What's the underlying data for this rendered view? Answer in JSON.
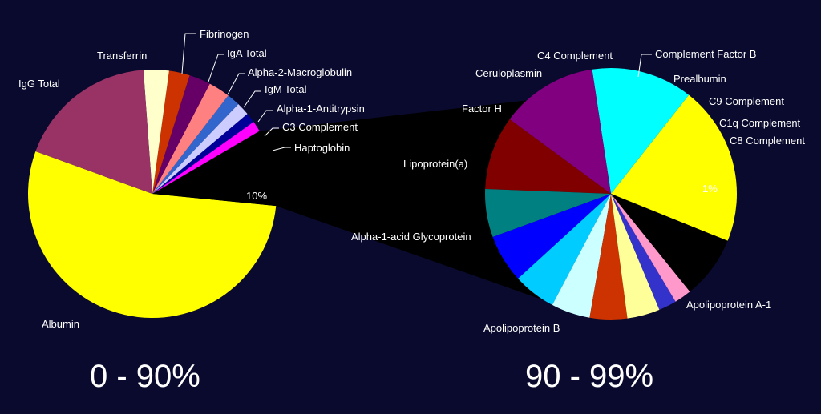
{
  "colors": {
    "background": "#0a0a2e",
    "text": "#ffffff",
    "connector": "#000000"
  },
  "chart_data": [
    {
      "type": "pie",
      "caption": "0 - 90%",
      "start_angle_deg": 160,
      "slices": [
        {
          "label": "Albumin",
          "value": 54,
          "color": "#ffff00"
        },
        {
          "label": "10%",
          "value": 10,
          "color": "#000000",
          "is_exploded_group": true
        },
        {
          "label": "Haptoglobin",
          "value": 1.4,
          "color": "#ff00ff"
        },
        {
          "label": "C3 Complement",
          "value": 1.3,
          "color": "#000099"
        },
        {
          "label": "Alpha-1-Antitrypsin",
          "value": 1.7,
          "color": "#ccccff"
        },
        {
          "label": "IgM Total",
          "value": 1.7,
          "color": "#3366cc"
        },
        {
          "label": "Alpha-2-Macroglobulin",
          "value": 2.8,
          "color": "#ff8080"
        },
        {
          "label": "IgA Total",
          "value": 2.8,
          "color": "#660066"
        },
        {
          "label": "Fibrinogen",
          "value": 2.7,
          "color": "#cc3300"
        },
        {
          "label": "Transferrin",
          "value": 3.3,
          "color": "#ffffcc"
        },
        {
          "label": "IgG Total",
          "value": 18.3,
          "color": "#993366"
        }
      ]
    },
    {
      "type": "pie",
      "caption": "90 - 99%",
      "start_angle_deg": -22,
      "slices": [
        {
          "label": "Apolipoprotein A-1",
          "value": 20.5,
          "color": "#ffff00"
        },
        {
          "label": "Apolipoprotein B",
          "value": 13,
          "color": "#00ffff"
        },
        {
          "label": "Alpha-1-acid Glycoprotein",
          "value": 12.5,
          "color": "#800080"
        },
        {
          "label": "Lipoprotein(a)",
          "value": 9.5,
          "color": "#800000"
        },
        {
          "label": "Factor H",
          "value": 6.2,
          "color": "#008080"
        },
        {
          "label": "Ceruloplasmin",
          "value": 6.2,
          "color": "#0000ff"
        },
        {
          "label": "C4 Complement",
          "value": 5.5,
          "color": "#00ccff"
        },
        {
          "label": "Complement Factor B",
          "value": 5,
          "color": "#ccffff"
        },
        {
          "label": "Prealbumin",
          "value": 4.8,
          "color": "#cc3300"
        },
        {
          "label": "C9 Complement",
          "value": 4.2,
          "color": "#ffff99"
        },
        {
          "label": "C1q Complement",
          "value": 2.3,
          "color": "#3333cc"
        },
        {
          "label": "C8 Complement",
          "value": 2.2,
          "color": "#ff99cc"
        },
        {
          "label": "1%",
          "value": 8.1,
          "color": "#000000",
          "is_remainder": true
        }
      ]
    }
  ]
}
